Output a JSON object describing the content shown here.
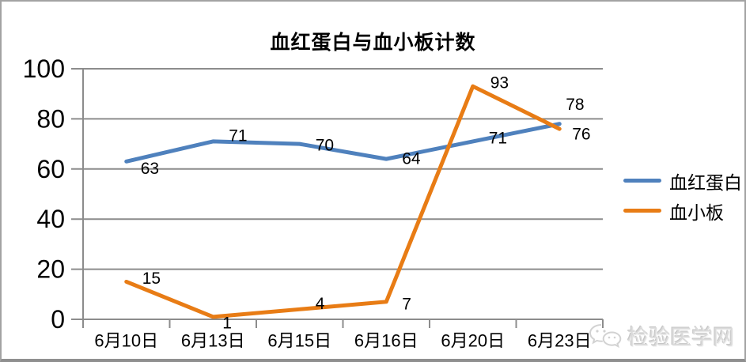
{
  "frame": {
    "background": "#ffffff",
    "border_color": "#a3a3a3"
  },
  "chart_data": {
    "type": "line",
    "title": "血红蛋白与血小板计数",
    "categories": [
      "6月10日",
      "6月13日",
      "6月15日",
      "6月16日",
      "6月20日",
      "6月23日"
    ],
    "series": [
      {
        "name": "血红蛋白",
        "color": "#4F81BD",
        "values": [
          63,
          71,
          70,
          64,
          71,
          78
        ]
      },
      {
        "name": "血小板",
        "color": "#E87C15",
        "values": [
          15,
          1,
          4,
          7,
          93,
          76
        ]
      }
    ],
    "y_ticks": [
      0,
      20,
      40,
      60,
      80,
      100
    ],
    "ylim": [
      0,
      100
    ],
    "grid": true,
    "gridline_color": "#8C8C8C",
    "legend_position": "right",
    "data_labels": true
  },
  "watermark": {
    "text": "检验医学网",
    "icon": "wechat-icon",
    "color": "#dadada"
  }
}
